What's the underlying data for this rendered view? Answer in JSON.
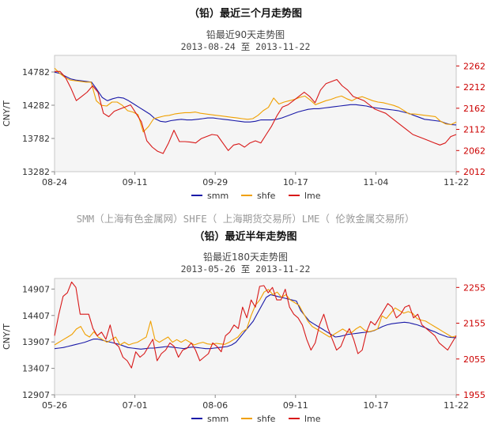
{
  "source_line": "SMM（上海有色金属网）SHFE（ 上海期货交易所）LME（ 伦敦金属交易所）",
  "chart_data": [
    {
      "type": "line",
      "heading": "（铅）最近三个月走势图",
      "title": "铅最近90天走势图",
      "date_range": "2013-08-24 至 2013-11-22",
      "ylabel": "CNY/T",
      "y_left": {
        "lim": [
          13282,
          15032
        ],
        "ticks": [
          13282,
          13782,
          14282,
          14782
        ],
        "color": "#333333"
      },
      "y_right": {
        "lim": [
          2012,
          2287
        ],
        "ticks": [
          2012,
          2062,
          2112,
          2162,
          2212,
          2262
        ],
        "color": "#cc0000"
      },
      "x_ticks": [
        "08-24",
        "09-11",
        "09-29",
        "10-17",
        "11-04",
        "11-22"
      ],
      "grid": false,
      "legend_position": "bottom",
      "series": [
        {
          "name": "smm",
          "color": "#1a1aa8",
          "axis": "left",
          "values": [
            14780,
            14760,
            14720,
            14680,
            14660,
            14650,
            14640,
            14630,
            14520,
            14400,
            14350,
            14380,
            14400,
            14390,
            14350,
            14300,
            14250,
            14200,
            14150,
            14080,
            14040,
            14030,
            14050,
            14060,
            14070,
            14060,
            14060,
            14070,
            14080,
            14090,
            14090,
            14080,
            14070,
            14060,
            14050,
            14040,
            14030,
            14030,
            14040,
            14060,
            14060,
            14060,
            14070,
            14090,
            14120,
            14150,
            14180,
            14200,
            14220,
            14230,
            14230,
            14240,
            14250,
            14260,
            14270,
            14280,
            14290,
            14290,
            14280,
            14270,
            14250,
            14240,
            14230,
            14220,
            14210,
            14200,
            14180,
            14160,
            14130,
            14100,
            14070,
            14060,
            14050,
            14040,
            14010,
            13990,
            13985
          ]
        },
        {
          "name": "shfe",
          "color": "#f0a000",
          "axis": "left",
          "values": [
            14840,
            14760,
            14700,
            14660,
            14650,
            14640,
            14630,
            14630,
            14350,
            14280,
            14270,
            14330,
            14330,
            14280,
            14200,
            14180,
            14140,
            13880,
            13960,
            14080,
            14100,
            14120,
            14130,
            14150,
            14160,
            14170,
            14170,
            14180,
            14160,
            14150,
            14140,
            14130,
            14120,
            14110,
            14100,
            14090,
            14080,
            14070,
            14080,
            14130,
            14200,
            14250,
            14390,
            14300,
            14330,
            14350,
            14370,
            14400,
            14420,
            14360,
            14290,
            14320,
            14350,
            14370,
            14400,
            14420,
            14380,
            14350,
            14390,
            14410,
            14380,
            14350,
            14330,
            14320,
            14300,
            14280,
            14250,
            14200,
            14150,
            14150,
            14140,
            14130,
            14120,
            14110,
            14040,
            14000,
            13990,
            14030
          ]
        },
        {
          "name": "lme",
          "color": "#d81818",
          "axis": "right",
          "values": [
            2249,
            2249,
            2235,
            2210,
            2180,
            2190,
            2200,
            2215,
            2200,
            2150,
            2142,
            2155,
            2160,
            2165,
            2170,
            2150,
            2130,
            2085,
            2070,
            2060,
            2055,
            2080,
            2110,
            2083,
            2083,
            2082,
            2080,
            2090,
            2095,
            2100,
            2098,
            2080,
            2062,
            2075,
            2078,
            2070,
            2080,
            2085,
            2080,
            2100,
            2120,
            2145,
            2165,
            2170,
            2180,
            2190,
            2200,
            2190,
            2175,
            2205,
            2220,
            2225,
            2230,
            2215,
            2205,
            2190,
            2185,
            2180,
            2170,
            2160,
            2155,
            2150,
            2140,
            2130,
            2120,
            2110,
            2100,
            2095,
            2090,
            2085,
            2080,
            2075,
            2080,
            2095,
            2100
          ]
        }
      ]
    },
    {
      "type": "line",
      "heading": "（铅）最近半年走势图",
      "title": "铅最近180天走势图",
      "date_range": "2013-05-26 至 2013-11-22",
      "ylabel": "CNY/T",
      "y_left": {
        "lim": [
          12907,
          15107
        ],
        "ticks": [
          12907,
          13407,
          13907,
          14407,
          14907
        ],
        "color": "#333333"
      },
      "y_right": {
        "lim": [
          1955,
          2280
        ],
        "ticks": [
          1955,
          2055,
          2155,
          2255
        ],
        "color": "#cc0000"
      },
      "x_ticks": [
        "05-26",
        "07-01",
        "08-06",
        "09-11",
        "10-17",
        "11-22"
      ],
      "grid": false,
      "legend_position": "bottom",
      "series": [
        {
          "name": "smm",
          "color": "#1a1aa8",
          "axis": "left",
          "values": [
            13780,
            13790,
            13800,
            13820,
            13840,
            13860,
            13880,
            13900,
            13930,
            13960,
            13960,
            13940,
            13920,
            13900,
            13880,
            13860,
            13830,
            13800,
            13790,
            13780,
            13770,
            13780,
            13790,
            13790,
            13800,
            13810,
            13820,
            13810,
            13800,
            13790,
            13780,
            13800,
            13810,
            13800,
            13790,
            13780,
            13780,
            13790,
            13800,
            13810,
            13820,
            13850,
            13900,
            14000,
            14100,
            14200,
            14300,
            14450,
            14600,
            14750,
            14800,
            14780,
            14760,
            14740,
            14720,
            14700,
            14680,
            14500,
            14400,
            14300,
            14250,
            14200,
            14150,
            14100,
            14050,
            14000,
            14010,
            14030,
            14050,
            14060,
            14070,
            14080,
            14090,
            14100,
            14120,
            14160,
            14200,
            14230,
            14250,
            14260,
            14270,
            14280,
            14270,
            14250,
            14230,
            14200,
            14170,
            14130,
            14100,
            14060,
            14030,
            14000,
            13990,
            13985
          ]
        },
        {
          "name": "shfe",
          "color": "#f0a000",
          "axis": "left",
          "values": [
            13850,
            13900,
            13950,
            14000,
            14050,
            14150,
            14200,
            14050,
            14000,
            14100,
            14000,
            13950,
            13900,
            13950,
            14000,
            13850,
            13900,
            13850,
            13880,
            13900,
            13950,
            14000,
            14300,
            13950,
            13900,
            13950,
            14000,
            13900,
            13950,
            13900,
            13950,
            13900,
            13850,
            13880,
            13900,
            13870,
            13860,
            13880,
            13870,
            13860,
            13900,
            13950,
            14000,
            14100,
            14150,
            14400,
            14600,
            14700,
            14850,
            14900,
            14800,
            14850,
            14750,
            14800,
            14700,
            14650,
            14600,
            14450,
            14300,
            14200,
            14150,
            14100,
            14050,
            14000,
            14050,
            14100,
            14150,
            14100,
            14080,
            14150,
            14200,
            14130,
            14100,
            14120,
            14150,
            14400,
            14350,
            14450,
            14550,
            14500,
            14450,
            14480,
            14450,
            14350,
            14320,
            14300,
            14250,
            14200,
            14150,
            14100,
            14050,
            14000,
            14020
          ]
        },
        {
          "name": "lme",
          "color": "#d81818",
          "axis": "right",
          "values": [
            2120,
            2180,
            2230,
            2240,
            2270,
            2255,
            2180,
            2180,
            2180,
            2140,
            2120,
            2130,
            2110,
            2150,
            2100,
            2090,
            2060,
            2050,
            2030,
            2075,
            2060,
            2070,
            2090,
            2110,
            2050,
            2070,
            2080,
            2100,
            2090,
            2060,
            2080,
            2085,
            2100,
            2080,
            2050,
            2060,
            2070,
            2100,
            2090,
            2075,
            2120,
            2130,
            2150,
            2140,
            2200,
            2170,
            2220,
            2200,
            2258,
            2260,
            2240,
            2255,
            2220,
            2220,
            2250,
            2200,
            2180,
            2170,
            2150,
            2110,
            2080,
            2100,
            2150,
            2180,
            2140,
            2110,
            2080,
            2090,
            2120,
            2140,
            2110,
            2070,
            2080,
            2130,
            2160,
            2150,
            2170,
            2190,
            2210,
            2200,
            2170,
            2180,
            2200,
            2205,
            2170,
            2180,
            2150,
            2140,
            2130,
            2120,
            2100,
            2090,
            2080,
            2100,
            2120
          ]
        }
      ]
    }
  ]
}
